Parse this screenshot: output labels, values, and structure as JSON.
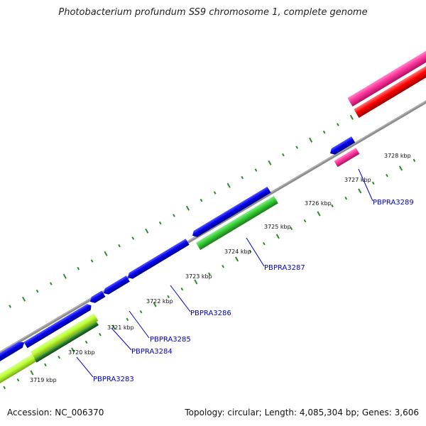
{
  "title": "Photobacterium profundum SS9 chromosome 1, complete genome",
  "accession": "Accession: NC_006370",
  "summary": "Topology: circular; Length: 4,085,304 bp; Genes: 3,606",
  "scale_labels": [
    "3719 kbp",
    "3720 kbp",
    "3721 kbp",
    "3722 kbp",
    "3723 kbp",
    "3724 kbp",
    "3725 kbp",
    "3726 kbp",
    "3727 kbp",
    "3728 kbp"
  ],
  "gene_labels": [
    "PBPRA3283",
    "PBPRA3284",
    "PBPRA3285",
    "PBPRA3286",
    "PBPRA3287",
    "PBPRA3289"
  ],
  "colors": {
    "backbone": "#8c8c8c",
    "tick": "#2e8b2e",
    "cds": "#0000ee",
    "green_feature": "#33cc33",
    "lime_feature": "#bbff33",
    "pink_feature": "#ff3399",
    "red_feature": "#ff0000",
    "leader": "#0000cc"
  }
}
